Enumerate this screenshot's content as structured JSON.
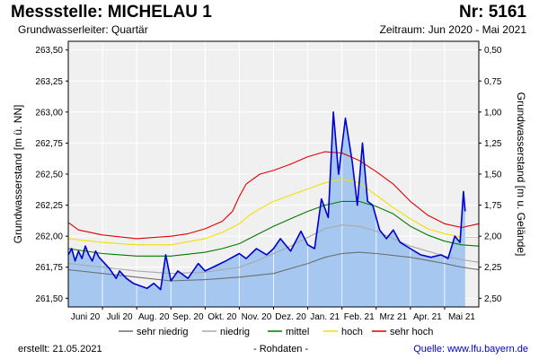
{
  "header": {
    "title": "Messstelle: MICHELAU 1",
    "number": "Nr: 5161",
    "aquifer": "Grundwasserleiter: Quartär",
    "period": "Zeitraum: Jun 2020 - Mai 2021"
  },
  "footer": {
    "created": "erstellt:  21.05.2021",
    "raw": "- Rohdaten -",
    "source_label": "Quelle: ",
    "source_link": "www.lfu.bayern.de"
  },
  "colors": {
    "level_line": "#0000cc",
    "level_fill": "#a6c8f0",
    "sehr_niedrig": "#6e6e6e",
    "niedrig": "#a8a8a8",
    "mittel": "#007a00",
    "hoch": "#f0e000",
    "sehr_hoch": "#e00000",
    "plot_bg": "#f0f0f0"
  },
  "chart_data": {
    "type": "line",
    "title": "",
    "ylabel_left": "Grundwasserstand [m ü. NN]",
    "ylabel_right": "Grundwasserstand [m u. Gelände]",
    "ylim": [
      261.43,
      263.57
    ],
    "left_ticks": [
      "263,50",
      "263,25",
      "263,00",
      "262,75",
      "262,50",
      "262,25",
      "262,00",
      "261,75",
      "261,50"
    ],
    "left_tick_values": [
      263.5,
      263.25,
      263.0,
      262.75,
      262.5,
      262.25,
      262.0,
      261.75,
      261.5
    ],
    "right_ticks": [
      "0,50",
      "0,75",
      "1,00",
      "1,25",
      "1,50",
      "1,75",
      "2,00",
      "2,25",
      "2,50"
    ],
    "xlim": [
      0,
      12
    ],
    "x_categories": [
      "Juni 20",
      "Juli 20",
      "Aug. 20",
      "Sep. 20",
      "Okt. 20",
      "Nov. 20",
      "Dez. 20",
      "Jan. 21",
      "Feb. 21",
      "Mrz 21",
      "Apr. 21",
      "Mai 21"
    ],
    "month_boundaries": [
      1,
      2,
      3,
      4,
      5,
      6,
      7,
      8,
      9,
      10,
      11
    ],
    "grid": true,
    "legend_position": "bottom",
    "series": [
      {
        "name": "sehr niedrig",
        "color": "#6e6e6e",
        "x": [
          0,
          1,
          2,
          3,
          4,
          5,
          6,
          7,
          7.5,
          8,
          8.5,
          9,
          10,
          11,
          11.5,
          12
        ],
        "y": [
          261.73,
          261.7,
          261.67,
          261.64,
          261.65,
          261.67,
          261.7,
          261.78,
          261.83,
          261.86,
          261.87,
          261.86,
          261.83,
          261.78,
          261.75,
          261.73
        ]
      },
      {
        "name": "niedrig",
        "color": "#a8a8a8",
        "x": [
          0,
          1,
          2,
          3,
          4,
          5,
          5.5,
          6,
          6.5,
          7,
          7.5,
          8,
          8.5,
          9,
          9.5,
          10,
          10.5,
          11,
          11.5,
          12
        ],
        "y": [
          261.78,
          261.75,
          261.72,
          261.7,
          261.71,
          261.75,
          261.8,
          261.86,
          261.92,
          261.99,
          262.06,
          262.09,
          262.08,
          262.04,
          261.98,
          261.92,
          261.88,
          261.84,
          261.81,
          261.79
        ]
      },
      {
        "name": "mittel",
        "color": "#007a00",
        "x": [
          0,
          1,
          2,
          3,
          4,
          4.5,
          5,
          5.5,
          6,
          6.5,
          7,
          7.5,
          8,
          8.5,
          9,
          9.5,
          10,
          10.5,
          11,
          11.5,
          12
        ],
        "y": [
          261.9,
          261.86,
          261.84,
          261.84,
          261.87,
          261.9,
          261.94,
          262.01,
          262.08,
          262.14,
          262.2,
          262.25,
          262.28,
          262.28,
          262.24,
          262.18,
          262.08,
          262.01,
          261.96,
          261.93,
          261.92
        ]
      },
      {
        "name": "hoch",
        "color": "#f0e000",
        "x": [
          0,
          1,
          2,
          3,
          4,
          4.5,
          5,
          5.3,
          5.6,
          6,
          6.5,
          7,
          7.5,
          8,
          8.5,
          9,
          9.5,
          10,
          10.5,
          11,
          11.5,
          12
        ],
        "y": [
          261.98,
          261.95,
          261.93,
          261.93,
          261.98,
          262.03,
          262.1,
          262.17,
          262.22,
          262.28,
          262.33,
          262.38,
          262.43,
          262.46,
          262.43,
          262.33,
          262.23,
          262.14,
          262.06,
          262.02,
          261.99,
          261.99
        ]
      },
      {
        "name": "sehr hoch",
        "color": "#e00000",
        "x": [
          0,
          0.3,
          1,
          2,
          3,
          3.5,
          4,
          4.5,
          4.8,
          5.0,
          5.2,
          5.6,
          6,
          6.5,
          7,
          7.5,
          8,
          8.5,
          9,
          9.5,
          10,
          10.5,
          11,
          11.5,
          12
        ],
        "y": [
          262.11,
          262.05,
          262.01,
          261.98,
          262.0,
          262.02,
          262.06,
          262.12,
          262.2,
          262.32,
          262.42,
          262.5,
          262.53,
          262.58,
          262.64,
          262.68,
          262.67,
          262.61,
          262.52,
          262.42,
          262.28,
          262.17,
          262.1,
          262.07,
          262.1
        ]
      },
      {
        "name": "Grundwasserstand",
        "color": "#0000cc",
        "fill": true,
        "x": [
          0,
          0.1,
          0.2,
          0.3,
          0.4,
          0.5,
          0.6,
          0.7,
          0.8,
          0.9,
          1.0,
          1.2,
          1.4,
          1.5,
          1.7,
          1.9,
          2.1,
          2.3,
          2.5,
          2.7,
          2.85,
          3.0,
          3.2,
          3.5,
          3.8,
          4.0,
          4.3,
          4.6,
          5.0,
          5.2,
          5.5,
          5.8,
          6.0,
          6.2,
          6.5,
          6.8,
          7.0,
          7.2,
          7.4,
          7.6,
          7.75,
          7.9,
          8.1,
          8.3,
          8.45,
          8.6,
          8.75,
          8.9,
          9.1,
          9.3,
          9.5,
          9.7,
          10.0,
          10.3,
          10.6,
          10.9,
          11.1,
          11.3,
          11.45,
          11.55,
          11.6
        ],
        "y": [
          261.85,
          261.9,
          261.8,
          261.88,
          261.82,
          261.92,
          261.85,
          261.8,
          261.88,
          261.83,
          261.8,
          261.74,
          261.66,
          261.72,
          261.66,
          261.62,
          261.6,
          261.58,
          261.62,
          261.57,
          261.85,
          261.64,
          261.72,
          261.66,
          261.78,
          261.72,
          261.76,
          261.8,
          261.86,
          261.82,
          261.9,
          261.85,
          261.9,
          261.98,
          261.88,
          262.04,
          261.93,
          261.9,
          262.3,
          262.15,
          263.0,
          262.5,
          262.95,
          262.6,
          262.25,
          262.75,
          262.28,
          262.25,
          262.05,
          261.98,
          262.05,
          261.95,
          261.9,
          261.85,
          261.83,
          261.85,
          261.82,
          262.0,
          261.95,
          262.36,
          262.2
        ]
      }
    ],
    "legend": [
      {
        "label": "sehr niedrig",
        "color": "#6e6e6e"
      },
      {
        "label": "niedrig",
        "color": "#a8a8a8"
      },
      {
        "label": "mittel",
        "color": "#007a00"
      },
      {
        "label": "hoch",
        "color": "#f0e000"
      },
      {
        "label": "sehr hoch",
        "color": "#e00000"
      }
    ]
  }
}
